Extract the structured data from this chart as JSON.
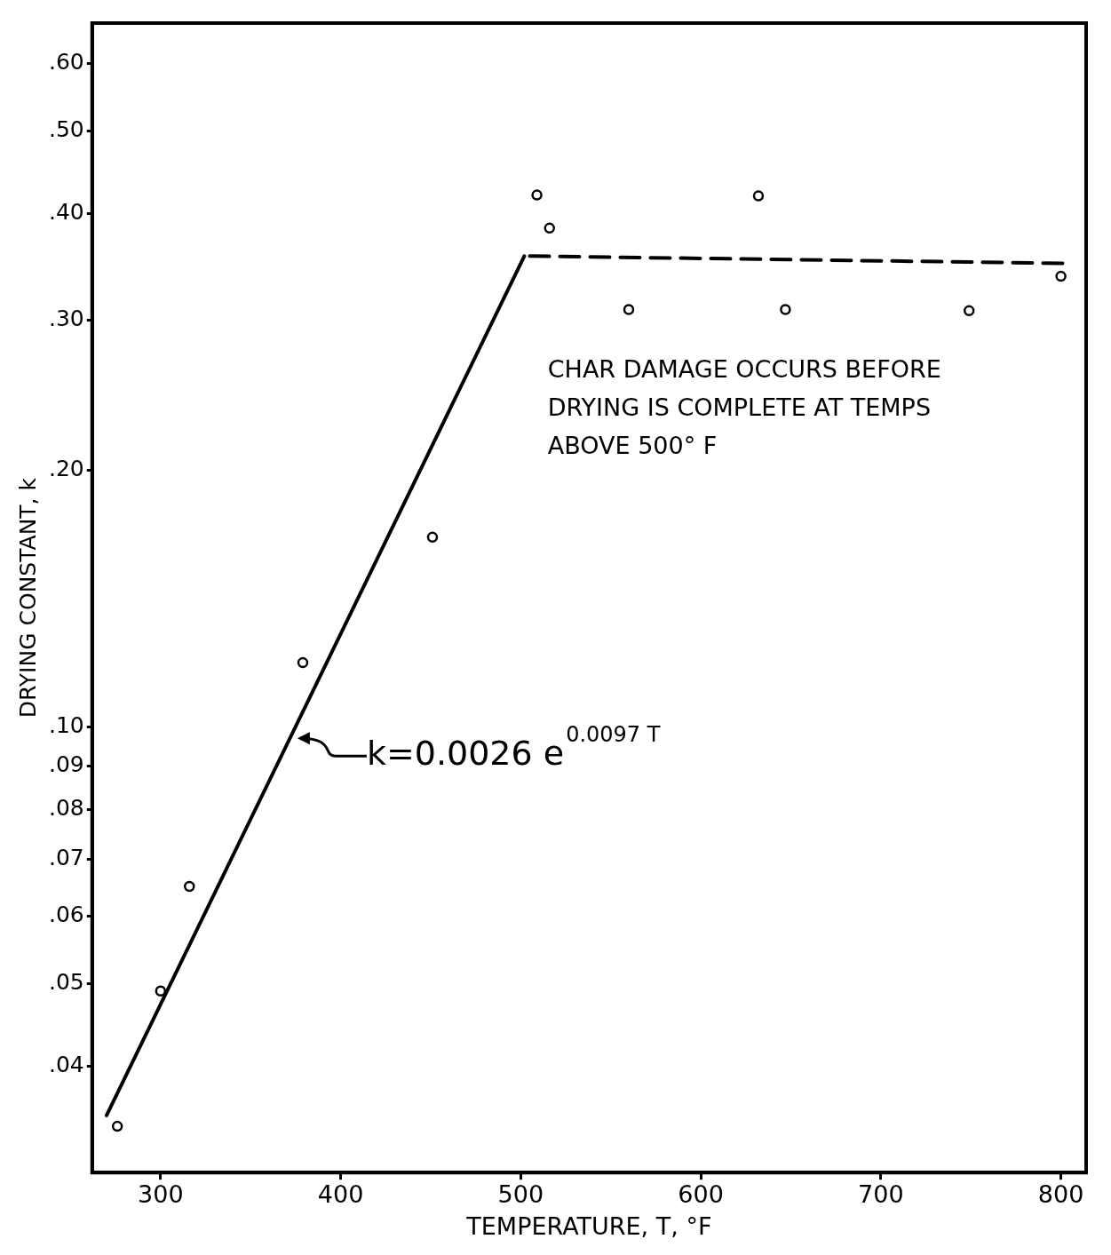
{
  "chart_data": {
    "type": "scatter",
    "xlabel": "TEMPERATURE, T, °F",
    "ylabel": "DRYING CONSTANT, k",
    "log": "y",
    "xlim": [
      262,
      814
    ],
    "xticks": [
      300,
      400,
      500,
      600,
      700,
      800
    ],
    "ylim": [
      0.03,
      0.67
    ],
    "yticks": [
      {
        "value": 0.04,
        "label": ".04"
      },
      {
        "value": 0.05,
        "label": ".05"
      },
      {
        "value": 0.06,
        "label": ".06"
      },
      {
        "value": 0.07,
        "label": ".07"
      },
      {
        "value": 0.08,
        "label": ".08"
      },
      {
        "value": 0.09,
        "label": ".09"
      },
      {
        "value": 0.1,
        "label": ".10"
      },
      {
        "value": 0.2,
        "label": ".20"
      },
      {
        "value": 0.3,
        "label": ".30"
      },
      {
        "value": 0.4,
        "label": ".40"
      },
      {
        "value": 0.5,
        "label": ".50"
      },
      {
        "value": 0.6,
        "label": ".60"
      }
    ],
    "grid": false,
    "legend": false,
    "marker": "circle",
    "series": [
      {
        "color": "#000000",
        "x": [
          276,
          300,
          316,
          379,
          451,
          509,
          516,
          560,
          632,
          647,
          749,
          800
        ],
        "values": [
          0.034,
          0.049,
          0.065,
          0.119,
          0.167,
          0.421,
          0.385,
          0.309,
          0.42,
          0.309,
          0.308,
          0.338
        ]
      },
      {
        "type": "line",
        "color": "#000000",
        "marker": "none",
        "line_style": "solid",
        "x": [
          270,
          502
        ],
        "values": [
          0.035,
          0.357
        ]
      },
      {
        "type": "line",
        "color": "#000000",
        "marker": "none",
        "line_style": "dashed",
        "x": [
          505,
          805
        ],
        "values": [
          0.357,
          0.35
        ]
      }
    ],
    "annotations": [
      {
        "text": "k=0.0026 e$^{0.0097 T}$",
        "x": 375,
        "y": 0.097
      },
      "CHAR DAMAGE OCCURS BEFORE DRYING IS COMPLETE AT TEMPS ABOVE 500° F"
    ]
  }
}
